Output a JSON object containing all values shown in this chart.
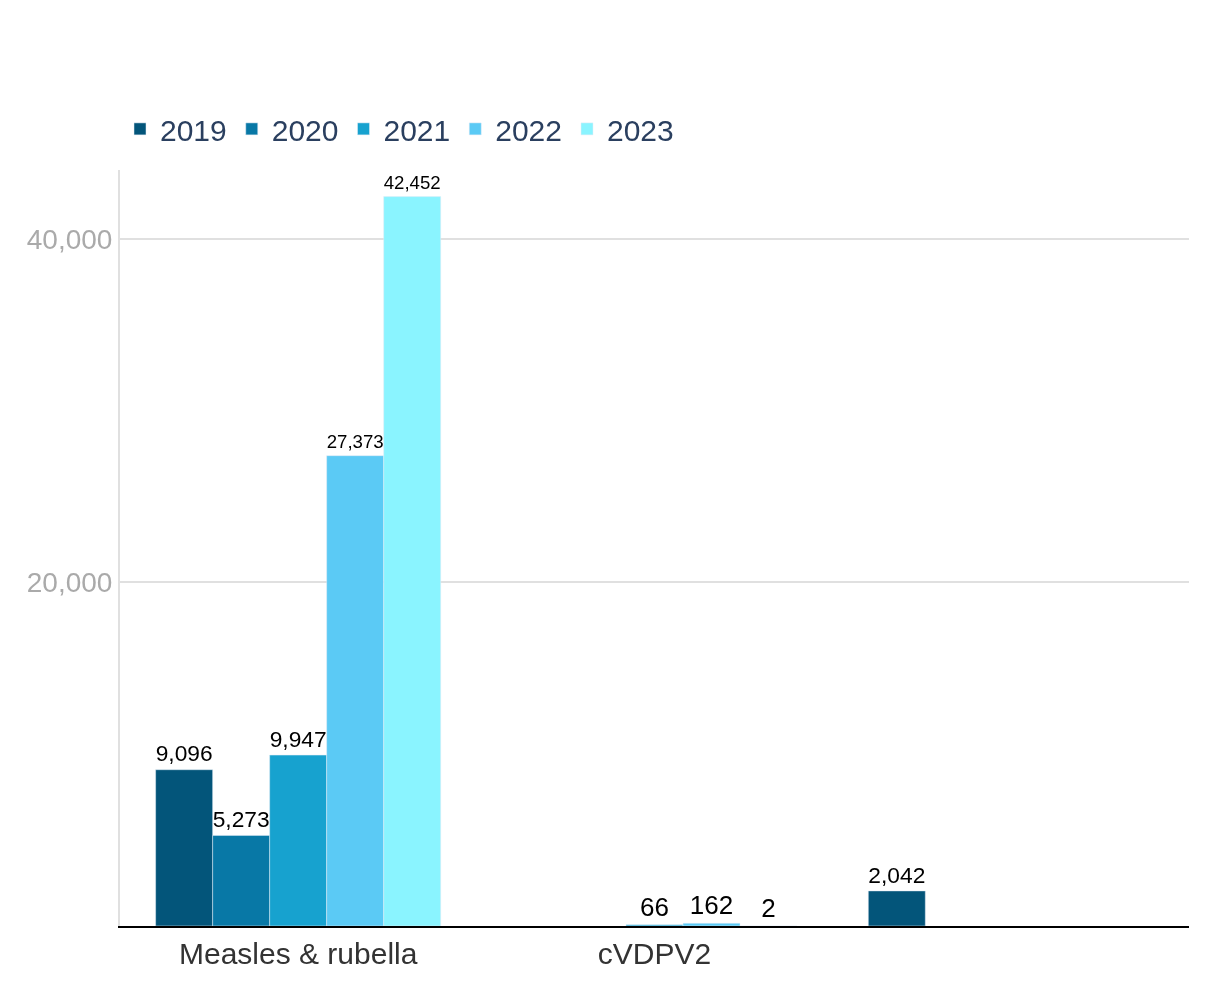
{
  "chart_data": {
    "type": "bar",
    "categories": [
      "Measles & rubella",
      "cVDPV2",
      null
    ],
    "series": [
      {
        "name": "2019",
        "color": "#03557a",
        "values": [
          9096,
          null,
          2042
        ],
        "value_labels": [
          "9,096",
          null,
          "2,042"
        ]
      },
      {
        "name": "2020",
        "color": "#0878a6",
        "values": [
          5273,
          null,
          null
        ],
        "value_labels": [
          "5,273",
          null,
          null
        ]
      },
      {
        "name": "2021",
        "color": "#17a2cf",
        "values": [
          9947,
          66,
          null
        ],
        "value_labels": [
          "9,947",
          "66",
          null
        ]
      },
      {
        "name": "2022",
        "color": "#5bcaf5",
        "values": [
          27373,
          162,
          null
        ],
        "value_labels": [
          "27,373",
          "162",
          null
        ]
      },
      {
        "name": "2023",
        "color": "#8af4ff",
        "values": [
          42452,
          2,
          null
        ],
        "value_labels": [
          "42,452",
          "2",
          null
        ]
      }
    ],
    "ylim": [
      0,
      44000
    ],
    "yticks": [
      {
        "value": 20000,
        "label": "20,000"
      },
      {
        "value": 40000,
        "label": "40,000"
      }
    ],
    "grid": "y",
    "legend": "top left"
  }
}
